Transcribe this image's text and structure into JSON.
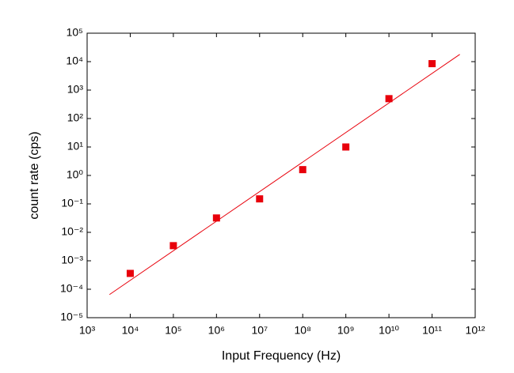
{
  "chart_data": {
    "type": "scatter",
    "x_label": "Input Frequency (Hz)",
    "y_label": "count rate (cps)",
    "x": [
      10000,
      100000,
      1000000,
      10000000,
      100000000,
      1000000000,
      10000000000,
      100000000000
    ],
    "values": [
      0.00036,
      0.0034,
      0.032,
      0.15,
      1.6,
      10,
      500,
      8500
    ],
    "color": "#e8000b",
    "fit_line": {
      "x": [
        3300,
        440000000000
      ],
      "values": [
        6.5e-05,
        18000
      ],
      "color": "#e8000b"
    },
    "x_log": true,
    "y_log": true,
    "xlim": [
      1000,
      1000000000000
    ],
    "ylim": [
      1e-05,
      100000
    ],
    "xticks": [
      {
        "value": 1000,
        "label": "10³"
      },
      {
        "value": 10000,
        "label": "10⁴"
      },
      {
        "value": 100000,
        "label": "10⁵"
      },
      {
        "value": 1000000,
        "label": "10⁶"
      },
      {
        "value": 10000000,
        "label": "10⁷"
      },
      {
        "value": 100000000,
        "label": "10⁸"
      },
      {
        "value": 1000000000,
        "label": "10⁹"
      },
      {
        "value": 10000000000,
        "label": "10¹⁰"
      },
      {
        "value": 100000000000,
        "label": "10¹¹"
      },
      {
        "value": 1000000000000,
        "label": "10¹²"
      }
    ],
    "yticks": [
      {
        "value": 1e-05,
        "label": "10⁻⁵"
      },
      {
        "value": 0.0001,
        "label": "10⁻⁴"
      },
      {
        "value": 0.001,
        "label": "10⁻³"
      },
      {
        "value": 0.01,
        "label": "10⁻²"
      },
      {
        "value": 0.1,
        "label": "10⁻¹"
      },
      {
        "value": 1,
        "label": "10⁰"
      },
      {
        "value": 10,
        "label": "10¹"
      },
      {
        "value": 100,
        "label": "10²"
      },
      {
        "value": 1000,
        "label": "10³"
      },
      {
        "value": 10000,
        "label": "10⁴"
      },
      {
        "value": 100000,
        "label": "10⁵"
      }
    ],
    "grid": false
  }
}
